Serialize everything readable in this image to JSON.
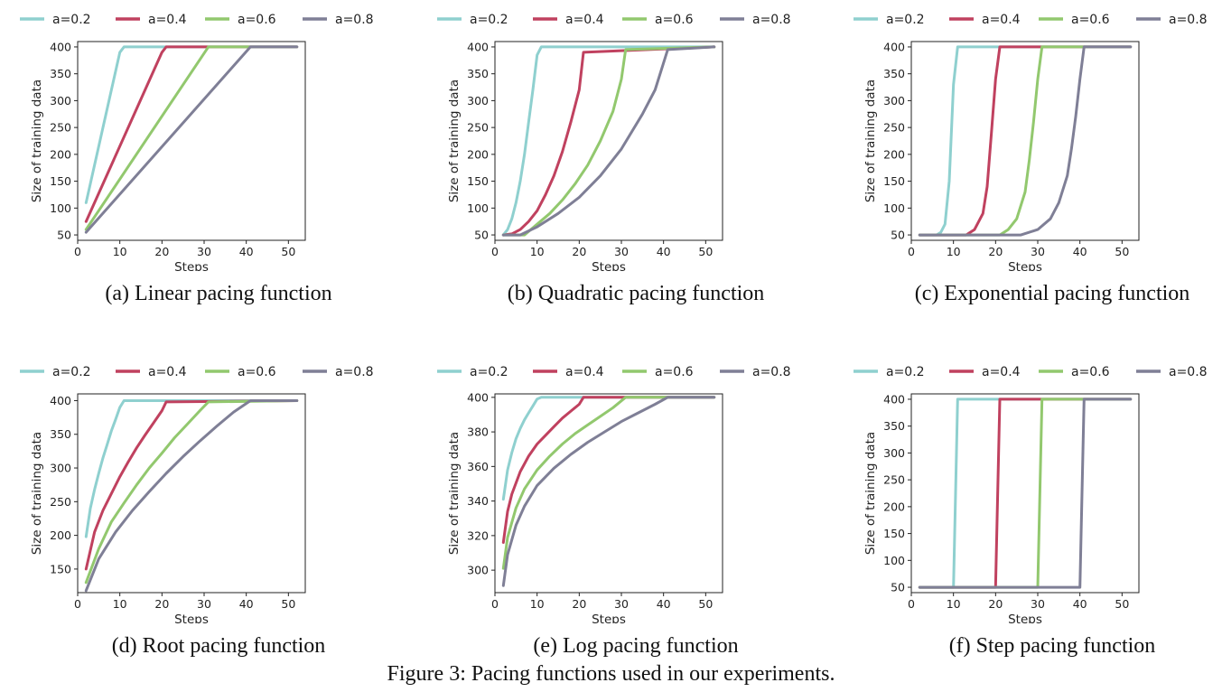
{
  "figure_caption": "Figure 3: Pacing functions used in our experiments.",
  "colors": {
    "a=0.2": "#8fd0cf",
    "a=0.4": "#c0415f",
    "a=0.6": "#92c86e",
    "a=0.8": "#7f7f96"
  },
  "chart_data": [
    {
      "type": "line",
      "caption": "(a) Linear pacing function",
      "xlabel": "Steps",
      "ylabel": "Size of training data",
      "xlim": [
        0,
        54
      ],
      "ylim": [
        40,
        410
      ],
      "xticks": [
        0,
        10,
        20,
        30,
        40,
        50
      ],
      "yticks": [
        50,
        100,
        150,
        200,
        250,
        300,
        350,
        400
      ],
      "legend_position": "top",
      "grid": false,
      "series": [
        {
          "name": "a=0.2",
          "x": [
            2,
            10,
            11,
            52
          ],
          "y": [
            110,
            390,
            400,
            400
          ]
        },
        {
          "name": "a=0.4",
          "x": [
            2,
            20,
            21,
            52
          ],
          "y": [
            75,
            390,
            400,
            400
          ]
        },
        {
          "name": "a=0.6",
          "x": [
            2,
            31,
            52
          ],
          "y": [
            60,
            400,
            400
          ]
        },
        {
          "name": "a=0.8",
          "x": [
            2,
            41,
            52
          ],
          "y": [
            55,
            400,
            400
          ]
        }
      ]
    },
    {
      "type": "line",
      "caption": "(b) Quadratic pacing function",
      "xlabel": "Steps",
      "ylabel": "Size of training data",
      "xlim": [
        0,
        54
      ],
      "ylim": [
        40,
        410
      ],
      "xticks": [
        0,
        10,
        20,
        30,
        40,
        50
      ],
      "yticks": [
        50,
        100,
        150,
        200,
        250,
        300,
        350,
        400
      ],
      "legend_position": "top",
      "grid": false,
      "series": [
        {
          "name": "a=0.2",
          "x": [
            2,
            3,
            4,
            5,
            6,
            7,
            8,
            9,
            10,
            11,
            52
          ],
          "y": [
            50,
            60,
            80,
            110,
            150,
            200,
            260,
            320,
            385,
            400,
            400
          ]
        },
        {
          "name": "a=0.4",
          "x": [
            2,
            4,
            6,
            8,
            10,
            12,
            14,
            16,
            18,
            20,
            21,
            52
          ],
          "y": [
            50,
            52,
            60,
            75,
            95,
            125,
            160,
            205,
            260,
            320,
            390,
            400
          ]
        },
        {
          "name": "a=0.6",
          "x": [
            2,
            7,
            10,
            13,
            16,
            19,
            22,
            25,
            28,
            30,
            31,
            52
          ],
          "y": [
            50,
            50,
            70,
            90,
            115,
            145,
            180,
            225,
            280,
            340,
            395,
            400
          ]
        },
        {
          "name": "a=0.8",
          "x": [
            2,
            6,
            10,
            15,
            20,
            25,
            30,
            35,
            38,
            41,
            52
          ],
          "y": [
            50,
            50,
            65,
            90,
            120,
            160,
            210,
            275,
            320,
            395,
            400
          ]
        }
      ]
    },
    {
      "type": "line",
      "caption": "(c) Exponential pacing function",
      "xlabel": "Steps",
      "ylabel": "Size of training data",
      "xlim": [
        0,
        54
      ],
      "ylim": [
        40,
        410
      ],
      "xticks": [
        0,
        10,
        20,
        30,
        40,
        50
      ],
      "yticks": [
        50,
        100,
        150,
        200,
        250,
        300,
        350,
        400
      ],
      "legend_position": "top",
      "grid": false,
      "series": [
        {
          "name": "a=0.2",
          "x": [
            2,
            6,
            7,
            8,
            9,
            10,
            11,
            52
          ],
          "y": [
            50,
            50,
            55,
            70,
            150,
            330,
            400,
            400
          ]
        },
        {
          "name": "a=0.4",
          "x": [
            2,
            13,
            15,
            17,
            18,
            19,
            20,
            21,
            52
          ],
          "y": [
            50,
            50,
            60,
            90,
            140,
            240,
            340,
            400,
            400
          ]
        },
        {
          "name": "a=0.6",
          "x": [
            2,
            21,
            23,
            25,
            27,
            28,
            29,
            30,
            31,
            52
          ],
          "y": [
            50,
            50,
            60,
            80,
            130,
            190,
            260,
            340,
            400,
            400
          ]
        },
        {
          "name": "a=0.8",
          "x": [
            2,
            26,
            30,
            33,
            35,
            37,
            38,
            39,
            40,
            41,
            52
          ],
          "y": [
            50,
            50,
            60,
            80,
            110,
            160,
            210,
            270,
            340,
            400,
            400
          ]
        }
      ]
    },
    {
      "type": "line",
      "caption": "(d) Root pacing function",
      "xlabel": "Steps",
      "ylabel": "Size of training data",
      "xlim": [
        0,
        54
      ],
      "ylim": [
        115,
        410
      ],
      "xticks": [
        0,
        10,
        20,
        30,
        40,
        50
      ],
      "yticks": [
        150,
        200,
        250,
        300,
        350,
        400
      ],
      "legend_position": "top",
      "grid": false,
      "series": [
        {
          "name": "a=0.2",
          "x": [
            2,
            3,
            4,
            5,
            6,
            7,
            8,
            9,
            10,
            11,
            52
          ],
          "y": [
            198,
            240,
            268,
            292,
            315,
            335,
            355,
            372,
            390,
            400,
            400
          ]
        },
        {
          "name": "a=0.4",
          "x": [
            2,
            4,
            6,
            8,
            10,
            12,
            14,
            16,
            18,
            20,
            21,
            52
          ],
          "y": [
            150,
            205,
            237,
            262,
            287,
            309,
            330,
            349,
            367,
            385,
            398,
            400
          ]
        },
        {
          "name": "a=0.6",
          "x": [
            2,
            5,
            8,
            11,
            14,
            17,
            20,
            23,
            26,
            29,
            31,
            52
          ],
          "y": [
            130,
            180,
            220,
            248,
            275,
            300,
            322,
            345,
            365,
            385,
            398,
            400
          ]
        },
        {
          "name": "a=0.8",
          "x": [
            2,
            5,
            9,
            13,
            17,
            21,
            25,
            29,
            33,
            37,
            41,
            52
          ],
          "y": [
            118,
            165,
            205,
            237,
            265,
            292,
            317,
            340,
            362,
            383,
            400,
            400
          ]
        }
      ]
    },
    {
      "type": "line",
      "caption": "(e) Log pacing function",
      "xlabel": "Steps",
      "ylabel": "Size of training data",
      "xlim": [
        0,
        54
      ],
      "ylim": [
        287,
        402
      ],
      "xticks": [
        0,
        10,
        20,
        30,
        40,
        50
      ],
      "yticks": [
        300,
        320,
        340,
        360,
        380,
        400
      ],
      "legend_position": "top",
      "grid": false,
      "series": [
        {
          "name": "a=0.2",
          "x": [
            2,
            3,
            4,
            5,
            6,
            7,
            8,
            9,
            10,
            11,
            52
          ],
          "y": [
            341,
            358,
            368,
            376,
            382,
            387,
            391,
            395,
            399,
            400,
            400
          ]
        },
        {
          "name": "a=0.4",
          "x": [
            2,
            3,
            4,
            6,
            8,
            10,
            12,
            14,
            16,
            18,
            20,
            21,
            52
          ],
          "y": [
            316,
            334,
            344,
            357,
            366,
            373,
            378,
            383,
            388,
            392,
            396,
            400,
            400
          ]
        },
        {
          "name": "a=0.6",
          "x": [
            2,
            3,
            5,
            7,
            10,
            13,
            16,
            19,
            22,
            25,
            28,
            31,
            52
          ],
          "y": [
            301,
            319,
            336,
            347,
            358,
            366,
            373,
            379,
            384,
            389,
            394,
            400,
            400
          ]
        },
        {
          "name": "a=0.8",
          "x": [
            2,
            3,
            5,
            7,
            10,
            14,
            18,
            22,
            26,
            30,
            34,
            38,
            41,
            52
          ],
          "y": [
            291,
            309,
            326,
            337,
            349,
            359,
            367,
            374,
            380,
            386,
            391,
            396,
            400,
            400
          ]
        }
      ]
    },
    {
      "type": "line",
      "caption": "(f) Step pacing function",
      "xlabel": "Steps",
      "ylabel": "Size of training data",
      "xlim": [
        0,
        54
      ],
      "ylim": [
        40,
        410
      ],
      "xticks": [
        0,
        10,
        20,
        30,
        40,
        50
      ],
      "yticks": [
        50,
        100,
        150,
        200,
        250,
        300,
        350,
        400
      ],
      "legend_position": "top",
      "grid": false,
      "series": [
        {
          "name": "a=0.2",
          "x": [
            2,
            10,
            11,
            52
          ],
          "y": [
            50,
            50,
            400,
            400
          ]
        },
        {
          "name": "a=0.4",
          "x": [
            2,
            20,
            21,
            52
          ],
          "y": [
            50,
            50,
            400,
            400
          ]
        },
        {
          "name": "a=0.6",
          "x": [
            2,
            30,
            31,
            52
          ],
          "y": [
            50,
            50,
            400,
            400
          ]
        },
        {
          "name": "a=0.8",
          "x": [
            2,
            40,
            41,
            52
          ],
          "y": [
            50,
            50,
            400,
            400
          ]
        }
      ]
    }
  ]
}
